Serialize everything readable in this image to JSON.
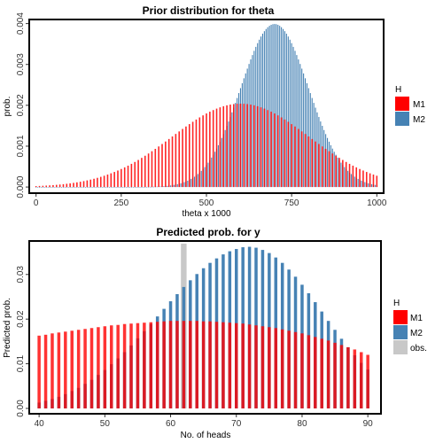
{
  "chart_data": [
    {
      "type": "bar",
      "title": "Prior distribution for theta",
      "xlabel": "theta x 1000",
      "ylabel": "prob.",
      "xlim": [
        -20,
        1020
      ],
      "ylim": [
        -0.00015,
        0.0041
      ],
      "x_ticks": [
        0,
        250,
        500,
        750,
        1000
      ],
      "x_tick_labels": [
        "0",
        "250",
        "500",
        "750",
        "1000"
      ],
      "y_ticks": [
        0,
        0.001,
        0.002,
        0.003,
        0.004
      ],
      "y_tick_labels": [
        "0.000",
        "0.001",
        "0.002",
        "0.003",
        "0.004"
      ],
      "legend": {
        "title": "H",
        "position": "right"
      },
      "series": [
        {
          "name": "M1",
          "color": "#ff0000",
          "distribution": "normal",
          "mean_x": 600,
          "sd_x": 200,
          "peak_y": 0.00204,
          "x_step": 10,
          "x_range": [
            0,
            1000
          ]
        },
        {
          "name": "M2",
          "color": "#4682b4",
          "distribution": "normal",
          "mean_x": 700,
          "sd_x": 100,
          "peak_y": 0.00399,
          "x_step": 5,
          "x_range": [
            0,
            1000
          ]
        }
      ]
    },
    {
      "type": "bar",
      "title": "Predicted prob. for y",
      "xlabel": "No. of heads",
      "ylabel": "Predicted prob.",
      "xlim": [
        38.5,
        92
      ],
      "ylim": [
        -0.0012,
        0.0375
      ],
      "x_ticks": [
        40,
        50,
        60,
        70,
        80,
        90
      ],
      "x_tick_labels": [
        "40",
        "50",
        "60",
        "70",
        "80",
        "90"
      ],
      "y_ticks": [
        0,
        0.01,
        0.02,
        0.03
      ],
      "y_tick_labels": [
        "0.00",
        "0.01",
        "0.02",
        "0.03"
      ],
      "legend": {
        "title": "H",
        "position": "right"
      },
      "x": [
        40,
        41,
        42,
        43,
        44,
        45,
        46,
        47,
        48,
        49,
        50,
        51,
        52,
        53,
        54,
        55,
        56,
        57,
        58,
        59,
        60,
        61,
        62,
        63,
        64,
        65,
        66,
        67,
        68,
        69,
        70,
        71,
        72,
        73,
        74,
        75,
        76,
        77,
        78,
        79,
        80,
        81,
        82,
        83,
        84,
        85,
        86,
        87,
        88,
        89,
        90
      ],
      "series": [
        {
          "name": "M1",
          "color": "#ff0000",
          "values": [
            0.0163,
            0.0165,
            0.0168,
            0.017,
            0.0172,
            0.0174,
            0.0176,
            0.0178,
            0.018,
            0.0182,
            0.0184,
            0.0186,
            0.0187,
            0.0189,
            0.019,
            0.0191,
            0.0192,
            0.0193,
            0.0194,
            0.0195,
            0.0196,
            0.0196,
            0.0196,
            0.0196,
            0.0196,
            0.0195,
            0.0195,
            0.0194,
            0.0193,
            0.0192,
            0.0191,
            0.019,
            0.0188,
            0.0186,
            0.0184,
            0.0182,
            0.018,
            0.0177,
            0.0174,
            0.0171,
            0.0168,
            0.0164,
            0.016,
            0.0156,
            0.0152,
            0.0147,
            0.0142,
            0.0137,
            0.0132,
            0.0126,
            0.012
          ]
        },
        {
          "name": "M2",
          "color": "#4682b4",
          "values": [
            0.0013,
            0.0017,
            0.0021,
            0.0026,
            0.0032,
            0.0039,
            0.0046,
            0.0055,
            0.0064,
            0.0075,
            0.0086,
            0.0099,
            0.0112,
            0.0126,
            0.0141,
            0.0157,
            0.0173,
            0.0189,
            0.0206,
            0.0223,
            0.024,
            0.0256,
            0.0272,
            0.0287,
            0.0301,
            0.0314,
            0.0326,
            0.0336,
            0.0345,
            0.0352,
            0.0357,
            0.0361,
            0.0362,
            0.036,
            0.0355,
            0.0348,
            0.0338,
            0.0326,
            0.0311,
            0.0295,
            0.0277,
            0.0258,
            0.0238,
            0.0217,
            0.0196,
            0.0176,
            0.0156,
            0.0137,
            0.0119,
            0.0102,
            0.0087
          ]
        },
        {
          "name": "obs.",
          "color": "#c8c8c8",
          "x": [
            62
          ],
          "values": [
            0.0369
          ]
        }
      ]
    }
  ]
}
